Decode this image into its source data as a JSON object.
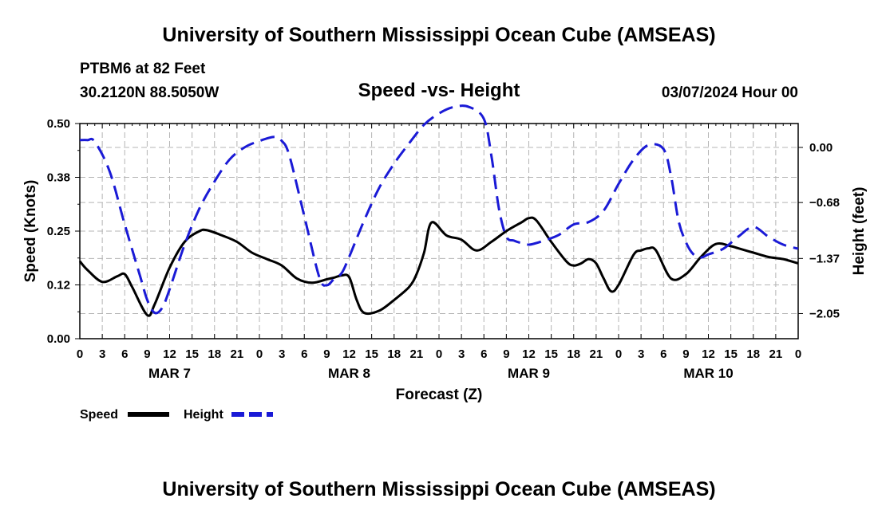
{
  "page": {
    "title": "University of Southern Mississippi Ocean Cube (AMSEAS)",
    "title_bottom": "University of Southern Mississippi Ocean Cube (AMSEAS)",
    "station": "PTBM6 at 82 Feet",
    "coords": "30.2120N  88.5050W",
    "subtitle": "Speed -vs- Height",
    "datetime": "03/07/2024 Hour 00"
  },
  "legend": {
    "speed_label": "Speed",
    "height_label": "Height"
  },
  "colors": {
    "speed": "#000000",
    "height": "#1a1ad6",
    "grid": "#b4b4b4"
  },
  "chart_data": {
    "type": "line",
    "xlabel": "Forecast (Z)",
    "ylabel_left": "Speed (Knots)",
    "ylabel_right": "Height (feet)",
    "x_range_hours": [
      0,
      96
    ],
    "x_tick_labels": [
      "0",
      "3",
      "6",
      "9",
      "12",
      "15",
      "18",
      "21",
      "0",
      "3",
      "6",
      "9",
      "12",
      "15",
      "18",
      "21",
      "0",
      "3",
      "6",
      "9",
      "12",
      "15",
      "18",
      "21",
      "0",
      "3",
      "6",
      "9",
      "12",
      "15",
      "18",
      "21",
      "0"
    ],
    "day_labels": [
      {
        "label": "MAR 7",
        "hour": 12
      },
      {
        "label": "MAR 8",
        "hour": 36
      },
      {
        "label": "MAR 9",
        "hour": 60
      },
      {
        "label": "MAR 10",
        "hour": 84
      }
    ],
    "y_left": {
      "range": [
        0,
        0.5
      ],
      "ticks": [
        0.0,
        0.125,
        0.25,
        0.375,
        0.5
      ],
      "tick_labels": [
        "0.00",
        "0.12",
        "0.25",
        "0.38",
        "0.50"
      ]
    },
    "y_right": {
      "range": [
        -2.36,
        0.295
      ],
      "ticks": [
        -2.05,
        -1.37,
        -0.68,
        0.0
      ],
      "tick_labels": [
        "−2.05",
        "−1.37",
        "−0.68",
        "0.00"
      ]
    },
    "series": [
      {
        "name": "Speed",
        "axis": "left",
        "style": "solid",
        "x": [
          0,
          1,
          3,
          5,
          6,
          7,
          9,
          10,
          12,
          14,
          16,
          17,
          19,
          21,
          23,
          25,
          27,
          29,
          31,
          33,
          34,
          35,
          36,
          37,
          38,
          40,
          42,
          44,
          45,
          46,
          47,
          49,
          51,
          53,
          55,
          57,
          59,
          60,
          61,
          63,
          65,
          66,
          67,
          68,
          69,
          70,
          71,
          72,
          74,
          75,
          76,
          77,
          79,
          81,
          83,
          85,
          87,
          88,
          90,
          92,
          94,
          96
        ],
        "y": [
          0.18,
          0.16,
          0.132,
          0.145,
          0.15,
          0.12,
          0.055,
          0.08,
          0.165,
          0.225,
          0.25,
          0.252,
          0.24,
          0.225,
          0.2,
          0.185,
          0.17,
          0.14,
          0.13,
          0.138,
          0.142,
          0.147,
          0.143,
          0.09,
          0.06,
          0.065,
          0.09,
          0.12,
          0.15,
          0.2,
          0.27,
          0.24,
          0.23,
          0.205,
          0.225,
          0.25,
          0.27,
          0.28,
          0.275,
          0.225,
          0.18,
          0.17,
          0.175,
          0.185,
          0.175,
          0.14,
          0.11,
          0.125,
          0.195,
          0.205,
          0.21,
          0.205,
          0.14,
          0.15,
          0.19,
          0.22,
          0.215,
          0.21,
          0.2,
          0.19,
          0.185,
          0.175
        ]
      },
      {
        "name": "Height",
        "axis": "right",
        "style": "dashed",
        "x": [
          0,
          1,
          2,
          4,
          6,
          8,
          9,
          10,
          11,
          12,
          14,
          16,
          18,
          20,
          22,
          24,
          26,
          27,
          28,
          30,
          32,
          33,
          34,
          35,
          36,
          38,
          40,
          42,
          44,
          46,
          48,
          50,
          52,
          54,
          55,
          56,
          57,
          58,
          59,
          60,
          61,
          62,
          64,
          66,
          68,
          70,
          72,
          74,
          76,
          78,
          79,
          80,
          81,
          82,
          83,
          84,
          86,
          88,
          90,
          92,
          94,
          96
        ],
        "y": [
          0.09,
          0.09,
          0.07,
          -0.3,
          -0.95,
          -1.57,
          -1.88,
          -2.04,
          -1.98,
          -1.75,
          -1.2,
          -0.75,
          -0.42,
          -0.15,
          0.0,
          0.08,
          0.13,
          0.08,
          -0.1,
          -0.85,
          -1.6,
          -1.7,
          -1.62,
          -1.55,
          -1.35,
          -0.9,
          -0.5,
          -0.2,
          0.05,
          0.28,
          0.42,
          0.5,
          0.5,
          0.35,
          -0.1,
          -0.75,
          -1.1,
          -1.15,
          -1.18,
          -1.2,
          -1.18,
          -1.15,
          -1.08,
          -0.95,
          -0.92,
          -0.78,
          -0.45,
          -0.15,
          0.03,
          -0.02,
          -0.35,
          -0.9,
          -1.17,
          -1.32,
          -1.36,
          -1.32,
          -1.25,
          -1.1,
          -0.98,
          -1.1,
          -1.2,
          -1.25
        ]
      }
    ]
  }
}
